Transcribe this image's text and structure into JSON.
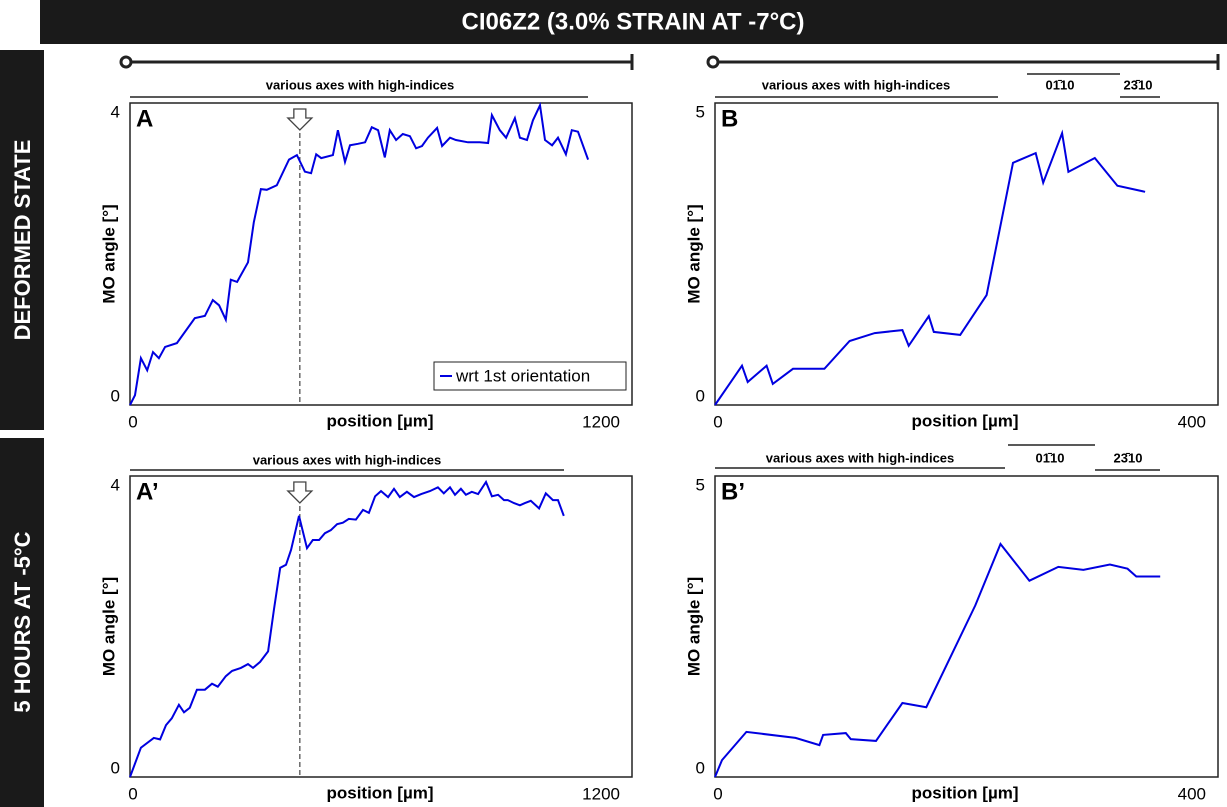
{
  "figure": {
    "title": "CI06Z2 (3.0% STRAIN AT -7°C)",
    "row_labels": [
      "DEFORMED STATE",
      "5 HOURS AT -5°C"
    ]
  },
  "chart_data": [
    {
      "type": "line",
      "panel_label": "A",
      "xlabel": "position [µm]",
      "ylabel": "MO angle [°]",
      "annotations": [
        "various axes with high-indices"
      ],
      "xlim": [
        0,
        1200
      ],
      "ylim": [
        0,
        4
      ],
      "xticks": [
        0,
        1200
      ],
      "yticks": [
        0,
        4
      ],
      "marker_x": 406,
      "legend": "lower right",
      "x": [
        0,
        12,
        26,
        41,
        55,
        69,
        84,
        112,
        155,
        179,
        198,
        213,
        229,
        241,
        256,
        282,
        296,
        313,
        327,
        351,
        380,
        399,
        418,
        433,
        445,
        457,
        485,
        497,
        514,
        526,
        545,
        562,
        578,
        593,
        609,
        621,
        636,
        652,
        669,
        684,
        698,
        712,
        734,
        746,
        765,
        779,
        808,
        836,
        856,
        865,
        884,
        899,
        920,
        932,
        949,
        963,
        980,
        992,
        1009,
        1023,
        1042,
        1056,
        1071,
        1095
      ],
      "series": [
        {
          "name": "wrt 1st orientation",
          "color": "#0000e0",
          "values": [
            0,
            0.13,
            0.62,
            0.46,
            0.7,
            0.62,
            0.77,
            0.82,
            1.15,
            1.18,
            1.39,
            1.32,
            1.13,
            1.66,
            1.63,
            1.89,
            2.42,
            2.86,
            2.85,
            2.91,
            3.25,
            3.31,
            3.09,
            3.07,
            3.32,
            3.27,
            3.31,
            3.64,
            3.22,
            3.44,
            3.46,
            3.48,
            3.68,
            3.64,
            3.28,
            3.64,
            3.51,
            3.59,
            3.56,
            3.4,
            3.43,
            3.54,
            3.67,
            3.43,
            3.54,
            3.51,
            3.48,
            3.48,
            3.47,
            3.84,
            3.64,
            3.54,
            3.8,
            3.54,
            3.51,
            3.77,
            3.97,
            3.51,
            3.44,
            3.54,
            3.32,
            3.64,
            3.62,
            3.25
          ]
        }
      ]
    },
    {
      "type": "line",
      "panel_label": "B",
      "xlabel": "position [µm]",
      "ylabel": "MO angle [°]",
      "annotations": [
        "various axes with high-indices",
        "01̄10",
        "23̄10"
      ],
      "xlim": [
        0,
        400
      ],
      "ylim": [
        0,
        5
      ],
      "xticks": [
        0,
        400
      ],
      "yticks": [
        0,
        5
      ],
      "x": [
        0,
        21.5,
        26,
        41,
        46,
        62,
        87,
        107,
        127,
        149,
        154,
        170,
        174,
        195,
        216,
        237,
        255,
        261,
        276,
        281,
        302,
        320,
        342
      ],
      "series": [
        {
          "color": "#0000e0",
          "values": [
            0,
            0.65,
            0.38,
            0.65,
            0.35,
            0.6,
            0.6,
            1.06,
            1.19,
            1.24,
            0.98,
            1.47,
            1.21,
            1.16,
            1.82,
            4.01,
            4.17,
            3.68,
            4.5,
            3.86,
            4.09,
            3.63,
            3.53
          ]
        }
      ]
    },
    {
      "type": "line",
      "panel_label": "A’",
      "xlabel": "position [µm]",
      "ylabel": "MO angle [°]",
      "annotations": [
        "various axes with high-indices"
      ],
      "xlim": [
        0,
        1200
      ],
      "ylim": [
        0,
        4
      ],
      "xticks": [
        0,
        1200
      ],
      "yticks": [
        0,
        4
      ],
      "marker_x": 406,
      "x": [
        0,
        26,
        57,
        72,
        86,
        100,
        117,
        129,
        143,
        160,
        179,
        196,
        210,
        229,
        244,
        265,
        282,
        294,
        311,
        330,
        344,
        359,
        373,
        385,
        404,
        423,
        437,
        452,
        466,
        480,
        495,
        509,
        523,
        540,
        557,
        571,
        586,
        600,
        617,
        631,
        645,
        662,
        679,
        696,
        717,
        736,
        750,
        765,
        777,
        791,
        803,
        817,
        832,
        851,
        865,
        880,
        894,
        903,
        918,
        932,
        944,
        958,
        978,
        994,
        1011,
        1023,
        1037
      ],
      "series": [
        {
          "color": "#0000e0",
          "values": [
            0,
            0.39,
            0.52,
            0.5,
            0.69,
            0.78,
            0.96,
            0.86,
            0.92,
            1.16,
            1.16,
            1.24,
            1.2,
            1.34,
            1.41,
            1.45,
            1.5,
            1.45,
            1.53,
            1.67,
            2.22,
            2.78,
            2.82,
            3.02,
            3.47,
            3.04,
            3.15,
            3.15,
            3.24,
            3.28,
            3.36,
            3.38,
            3.43,
            3.42,
            3.55,
            3.51,
            3.73,
            3.8,
            3.72,
            3.83,
            3.72,
            3.79,
            3.72,
            3.76,
            3.8,
            3.85,
            3.77,
            3.85,
            3.75,
            3.83,
            3.75,
            3.79,
            3.76,
            3.92,
            3.73,
            3.75,
            3.68,
            3.68,
            3.64,
            3.61,
            3.64,
            3.67,
            3.57,
            3.77,
            3.68,
            3.68,
            3.47
          ]
        }
      ]
    },
    {
      "type": "line",
      "panel_label": "B’",
      "xlabel": "position [µm]",
      "ylabel": "MO angle [°]",
      "annotations": [
        "various axes with high-indices",
        "01̄10",
        "23̄10"
      ],
      "xlim": [
        0,
        400
      ],
      "ylim": [
        0,
        5
      ],
      "xticks": [
        0,
        400
      ],
      "yticks": [
        0,
        5
      ],
      "x": [
        0,
        5.6,
        25,
        64,
        83,
        86,
        104,
        108,
        128,
        149,
        168,
        207,
        227,
        250,
        273,
        293,
        314,
        328,
        335,
        354
      ],
      "series": [
        {
          "color": "#0000e0",
          "values": [
            0,
            0.28,
            0.75,
            0.65,
            0.53,
            0.7,
            0.73,
            0.63,
            0.6,
            1.23,
            1.16,
            2.85,
            3.87,
            3.26,
            3.49,
            3.44,
            3.53,
            3.46,
            3.33,
            3.33
          ]
        }
      ]
    }
  ]
}
